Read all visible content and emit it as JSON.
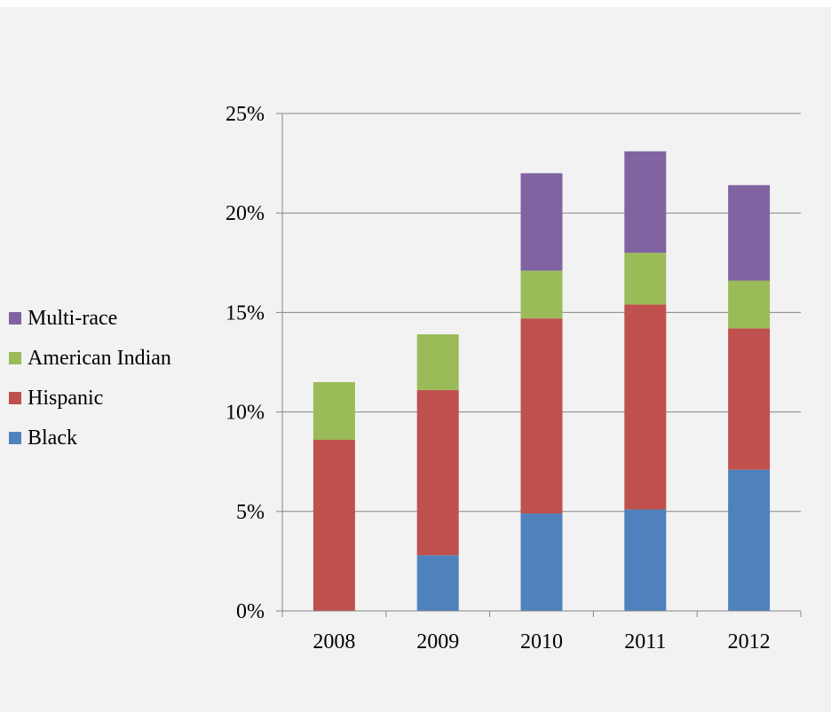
{
  "chart_data": {
    "type": "bar",
    "stacked": true,
    "categories": [
      "2008",
      "2009",
      "2010",
      "2011",
      "2012"
    ],
    "series": [
      {
        "name": "Black",
        "color": "#4f81bd",
        "values": [
          0.0,
          2.8,
          4.9,
          5.1,
          7.1
        ]
      },
      {
        "name": "Hispanic",
        "color": "#c0504d",
        "values": [
          8.6,
          8.3,
          9.8,
          10.3,
          7.1
        ]
      },
      {
        "name": "American Indian",
        "color": "#9bbb59",
        "values": [
          2.9,
          2.8,
          2.4,
          2.6,
          2.4
        ]
      },
      {
        "name": "Multi-race",
        "color": "#8064a2",
        "values": [
          0.0,
          0.0,
          4.9,
          5.1,
          4.8
        ]
      }
    ],
    "y_ticks": [
      "0%",
      "5%",
      "10%",
      "15%",
      "20%",
      "25%"
    ],
    "ylim": [
      0,
      25
    ],
    "y_unit": "percent",
    "grid": true,
    "legend_placement": "left",
    "legend_order": [
      "Multi-race",
      "American Indian",
      "Hispanic",
      "Black"
    ],
    "title": "",
    "xlabel": "",
    "ylabel": ""
  }
}
